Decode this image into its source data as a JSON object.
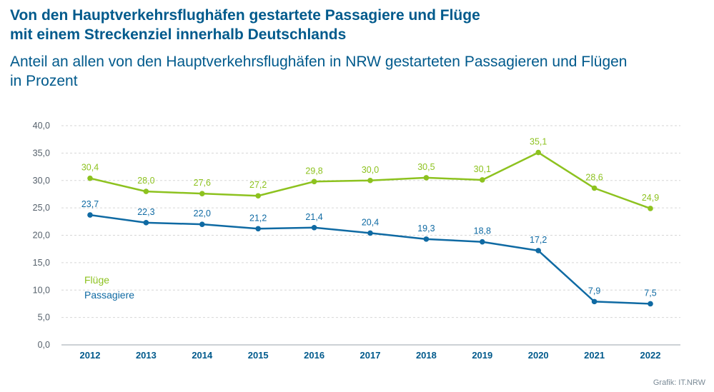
{
  "header": {
    "title_line1": "Von den Hauptverkehrsflughäfen gestartete Passagiere und Flüge",
    "title_line2": "mit einem Streckenziel innerhalb Deutschlands",
    "subtitle_line1": "Anteil an allen von den Hauptverkehrsflughäfen in NRW gestarteten Passagieren und Flügen",
    "subtitle_line2": "in Prozent"
  },
  "credit": "Grafik: IT.NRW",
  "colors": {
    "fluege": "#8dc21f",
    "passagiere": "#0f6aa3",
    "title": "#005a8c",
    "grid": "#d6d6d6"
  },
  "chart_data": {
    "type": "line",
    "categories": [
      "2012",
      "2013",
      "2014",
      "2015",
      "2016",
      "2017",
      "2018",
      "2019",
      "2020",
      "2021",
      "2022"
    ],
    "ylim": [
      0,
      40
    ],
    "yticks": [
      "0,0",
      "5,0",
      "10,0",
      "15,0",
      "20,0",
      "25,0",
      "30,0",
      "35,0",
      "40,0"
    ],
    "grid": true,
    "legend_position": "bottom-left",
    "series": [
      {
        "name": "Flüge",
        "values": [
          30.4,
          28.0,
          27.6,
          27.2,
          29.8,
          30.0,
          30.5,
          30.1,
          35.1,
          28.6,
          24.9
        ],
        "labels": [
          "30,4",
          "28,0",
          "27,6",
          "27,2",
          "29,8",
          "30,0",
          "30,5",
          "30,1",
          "35,1",
          "28,6",
          "24,9"
        ]
      },
      {
        "name": "Passagiere",
        "values": [
          23.7,
          22.3,
          22.0,
          21.2,
          21.4,
          20.4,
          19.3,
          18.8,
          17.2,
          7.9,
          7.5
        ],
        "labels": [
          "23,7",
          "22,3",
          "22,0",
          "21,2",
          "21,4",
          "20,4",
          "19,3",
          "18,8",
          "17,2",
          "7,9",
          "7,5"
        ]
      }
    ]
  }
}
